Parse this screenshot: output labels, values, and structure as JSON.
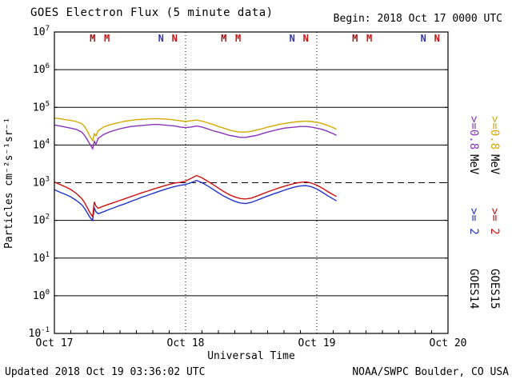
{
  "header": {
    "title": "GOES Electron Flux (5 minute data)",
    "begin_label": "Begin: 2018 Oct 17 0000 UTC"
  },
  "footer": {
    "updated": "Updated 2018 Oct 19 03:36:02 UTC",
    "credit": "NOAA/SWPC Boulder, CO USA"
  },
  "chart_data": {
    "type": "line",
    "title": "GOES Electron Flux (5 minute data)",
    "xlabel": "Universal Time",
    "ylabel": "Particles cm⁻²s⁻¹sr⁻¹",
    "x_range_hours": [
      0,
      72
    ],
    "x_ticks": [
      {
        "hour": 0,
        "label": "Oct 17"
      },
      {
        "hour": 24,
        "label": "Oct 18"
      },
      {
        "hour": 48,
        "label": "Oct 19"
      },
      {
        "hour": 72,
        "label": "Oct 20"
      }
    ],
    "y_log_range": [
      -1,
      7
    ],
    "y_tick_exponents": [
      -1,
      0,
      1,
      2,
      3,
      4,
      5,
      6,
      7
    ],
    "threshold_line": {
      "value": 1000,
      "style": "dashed"
    },
    "day_gridlines_hours": [
      24,
      48
    ],
    "grid": "on",
    "series": [
      {
        "name": "GOES14 >=0.8 MeV",
        "color": "#8833bb",
        "points": [
          [
            0,
            34000
          ],
          [
            1,
            32000
          ],
          [
            2,
            30000
          ],
          [
            3,
            28000
          ],
          [
            4,
            26000
          ],
          [
            5,
            22000
          ],
          [
            5.5,
            18000
          ],
          [
            6,
            14000
          ],
          [
            6.5,
            10500
          ],
          [
            7,
            8000
          ],
          [
            7.3,
            12500
          ],
          [
            7.6,
            10500
          ],
          [
            8,
            15000
          ],
          [
            9,
            19000
          ],
          [
            10,
            22000
          ],
          [
            11,
            24500
          ],
          [
            12,
            27000
          ],
          [
            13,
            29000
          ],
          [
            14,
            31000
          ],
          [
            15,
            32000
          ],
          [
            16,
            33000
          ],
          [
            17,
            34000
          ],
          [
            18,
            35000
          ],
          [
            19,
            35000
          ],
          [
            20,
            34000
          ],
          [
            21,
            33000
          ],
          [
            22,
            32000
          ],
          [
            23,
            30000
          ],
          [
            24,
            29000
          ],
          [
            25,
            30000
          ],
          [
            26,
            32000
          ],
          [
            27,
            30000
          ],
          [
            28,
            27000
          ],
          [
            29,
            24000
          ],
          [
            30,
            22000
          ],
          [
            31,
            20000
          ],
          [
            32,
            18000
          ],
          [
            33,
            17000
          ],
          [
            34,
            16000
          ],
          [
            35,
            16000
          ],
          [
            36,
            17000
          ],
          [
            37,
            18000
          ],
          [
            38,
            20000
          ],
          [
            39,
            22000
          ],
          [
            40,
            24000
          ],
          [
            41,
            26000
          ],
          [
            42,
            28000
          ],
          [
            43,
            29000
          ],
          [
            44,
            30000
          ],
          [
            45,
            31000
          ],
          [
            46,
            31000
          ],
          [
            47,
            30000
          ],
          [
            48,
            28000
          ],
          [
            49,
            26000
          ],
          [
            50,
            23000
          ],
          [
            51,
            20000
          ],
          [
            51.6,
            18000
          ]
        ]
      },
      {
        "name": "GOES15 >=0.8 MeV",
        "color": "#d4aa00",
        "points": [
          [
            0,
            52000
          ],
          [
            1,
            50000
          ],
          [
            2,
            47000
          ],
          [
            3,
            45000
          ],
          [
            4,
            42000
          ],
          [
            5,
            37000
          ],
          [
            5.5,
            31000
          ],
          [
            6,
            24000
          ],
          [
            6.5,
            17000
          ],
          [
            7,
            13000
          ],
          [
            7.3,
            20000
          ],
          [
            7.6,
            17500
          ],
          [
            8,
            24000
          ],
          [
            9,
            30000
          ],
          [
            10,
            34000
          ],
          [
            11,
            37000
          ],
          [
            12,
            40000
          ],
          [
            13,
            43000
          ],
          [
            14,
            45000
          ],
          [
            15,
            47000
          ],
          [
            16,
            48000
          ],
          [
            17,
            49000
          ],
          [
            18,
            50000
          ],
          [
            19,
            50000
          ],
          [
            20,
            49000
          ],
          [
            21,
            48000
          ],
          [
            22,
            46000
          ],
          [
            23,
            44000
          ],
          [
            24,
            42000
          ],
          [
            25,
            44000
          ],
          [
            26,
            46000
          ],
          [
            27,
            43000
          ],
          [
            28,
            39000
          ],
          [
            29,
            35000
          ],
          [
            30,
            31000
          ],
          [
            31,
            28000
          ],
          [
            32,
            25000
          ],
          [
            33,
            23000
          ],
          [
            34,
            22000
          ],
          [
            35,
            22000
          ],
          [
            36,
            23000
          ],
          [
            37,
            25000
          ],
          [
            38,
            27000
          ],
          [
            39,
            30000
          ],
          [
            40,
            32000
          ],
          [
            41,
            35000
          ],
          [
            42,
            37000
          ],
          [
            43,
            39000
          ],
          [
            44,
            41000
          ],
          [
            45,
            42000
          ],
          [
            46,
            43000
          ],
          [
            47,
            42000
          ],
          [
            48,
            40000
          ],
          [
            49,
            37000
          ],
          [
            50,
            33000
          ],
          [
            51,
            29000
          ],
          [
            51.6,
            26000
          ]
        ]
      },
      {
        "name": "GOES14 >=2 MeV",
        "color": "#2233cc",
        "points": [
          [
            0,
            650
          ],
          [
            1,
            560
          ],
          [
            2,
            490
          ],
          [
            3,
            420
          ],
          [
            4,
            340
          ],
          [
            5,
            260
          ],
          [
            5.5,
            210
          ],
          [
            6,
            160
          ],
          [
            6.5,
            120
          ],
          [
            7,
            100
          ],
          [
            7.3,
            215
          ],
          [
            7.6,
            170
          ],
          [
            8,
            150
          ],
          [
            9,
            170
          ],
          [
            10,
            195
          ],
          [
            11,
            220
          ],
          [
            12,
            250
          ],
          [
            13,
            280
          ],
          [
            14,
            320
          ],
          [
            15,
            360
          ],
          [
            16,
            410
          ],
          [
            17,
            460
          ],
          [
            18,
            520
          ],
          [
            19,
            580
          ],
          [
            20,
            650
          ],
          [
            21,
            720
          ],
          [
            22,
            790
          ],
          [
            23,
            850
          ],
          [
            24,
            900
          ],
          [
            25,
            1000
          ],
          [
            26,
            1150
          ],
          [
            27,
            1000
          ],
          [
            28,
            830
          ],
          [
            29,
            670
          ],
          [
            30,
            540
          ],
          [
            31,
            440
          ],
          [
            32,
            370
          ],
          [
            33,
            320
          ],
          [
            34,
            290
          ],
          [
            35,
            280
          ],
          [
            36,
            300
          ],
          [
            37,
            340
          ],
          [
            38,
            390
          ],
          [
            39,
            440
          ],
          [
            40,
            500
          ],
          [
            41,
            560
          ],
          [
            42,
            630
          ],
          [
            43,
            700
          ],
          [
            44,
            770
          ],
          [
            45,
            820
          ],
          [
            46,
            840
          ],
          [
            47,
            780
          ],
          [
            48,
            680
          ],
          [
            49,
            560
          ],
          [
            50,
            450
          ],
          [
            51,
            370
          ],
          [
            51.6,
            330
          ]
        ]
      },
      {
        "name": "GOES15 >=2 MeV",
        "color": "#cc1111",
        "points": [
          [
            0,
            1050
          ],
          [
            1,
            900
          ],
          [
            2,
            780
          ],
          [
            3,
            660
          ],
          [
            4,
            520
          ],
          [
            5,
            380
          ],
          [
            5.5,
            300
          ],
          [
            6,
            220
          ],
          [
            6.5,
            160
          ],
          [
            7,
            125
          ],
          [
            7.3,
            310
          ],
          [
            7.6,
            240
          ],
          [
            8,
            210
          ],
          [
            9,
            240
          ],
          [
            10,
            270
          ],
          [
            11,
            300
          ],
          [
            12,
            340
          ],
          [
            13,
            380
          ],
          [
            14,
            430
          ],
          [
            15,
            480
          ],
          [
            16,
            540
          ],
          [
            17,
            600
          ],
          [
            18,
            670
          ],
          [
            19,
            740
          ],
          [
            20,
            820
          ],
          [
            21,
            900
          ],
          [
            22,
            980
          ],
          [
            23,
            1020
          ],
          [
            24,
            1100
          ],
          [
            25,
            1300
          ],
          [
            26,
            1550
          ],
          [
            27,
            1350
          ],
          [
            28,
            1100
          ],
          [
            29,
            900
          ],
          [
            30,
            720
          ],
          [
            31,
            580
          ],
          [
            32,
            480
          ],
          [
            33,
            420
          ],
          [
            34,
            380
          ],
          [
            35,
            370
          ],
          [
            36,
            390
          ],
          [
            37,
            440
          ],
          [
            38,
            500
          ],
          [
            39,
            570
          ],
          [
            40,
            640
          ],
          [
            41,
            720
          ],
          [
            42,
            800
          ],
          [
            43,
            880
          ],
          [
            44,
            960
          ],
          [
            45,
            1020
          ],
          [
            46,
            1050
          ],
          [
            47,
            980
          ],
          [
            48,
            860
          ],
          [
            49,
            720
          ],
          [
            50,
            580
          ],
          [
            51,
            480
          ],
          [
            51.6,
            430
          ]
        ]
      }
    ],
    "satellite_markers": {
      "midnight_letter": "M",
      "noon_letter": "N",
      "groups": [
        {
          "letter": "M",
          "hour": 7.0,
          "color": "#991111"
        },
        {
          "letter": "M",
          "hour": 9.6,
          "color": "#cc1111"
        },
        {
          "letter": "N",
          "hour": 19.5,
          "color": "#3333aa"
        },
        {
          "letter": "N",
          "hour": 22.0,
          "color": "#cc1111"
        },
        {
          "letter": "M",
          "hour": 31.0,
          "color": "#991111"
        },
        {
          "letter": "M",
          "hour": 33.6,
          "color": "#cc1111"
        },
        {
          "letter": "N",
          "hour": 43.5,
          "color": "#3333aa"
        },
        {
          "letter": "N",
          "hour": 46.0,
          "color": "#cc1111"
        },
        {
          "letter": "M",
          "hour": 55.0,
          "color": "#991111"
        },
        {
          "letter": "M",
          "hour": 57.6,
          "color": "#cc1111"
        },
        {
          "letter": "N",
          "hour": 67.5,
          "color": "#3333aa"
        },
        {
          "letter": "N",
          "hour": 70.0,
          "color": "#cc1111"
        }
      ]
    },
    "legend_right": {
      "columns": [
        {
          "satellite": "GOES14",
          "segments": [
            {
              "text": ">=0.8",
              "color": "#8833bb"
            },
            {
              "text": "MeV",
              "color": "#000000"
            },
            {
              "text": ">= 2",
              "color": "#2233cc"
            },
            {
              "text": "GOES14",
              "color": "#000000"
            }
          ]
        },
        {
          "satellite": "GOES15",
          "segments": [
            {
              "text": ">=0.8",
              "color": "#d4aa00"
            },
            {
              "text": "MeV",
              "color": "#000000"
            },
            {
              "text": ">= 2",
              "color": "#cc1111"
            },
            {
              "text": "GOES15",
              "color": "#000000"
            }
          ]
        }
      ]
    }
  }
}
